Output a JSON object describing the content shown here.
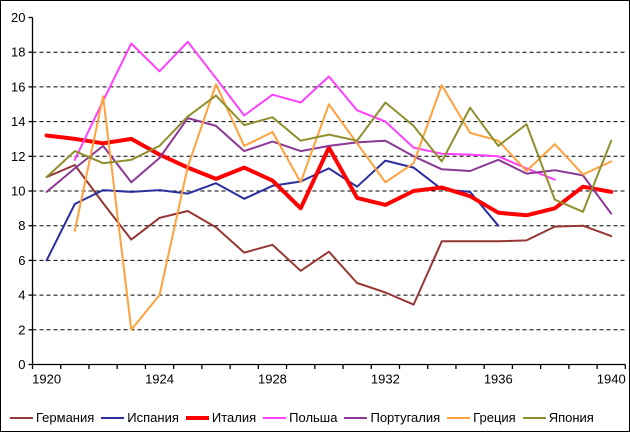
{
  "chart_data": {
    "type": "line",
    "title": "",
    "xlabel": "",
    "ylabel": "",
    "x": [
      1920,
      1921,
      1922,
      1923,
      1924,
      1925,
      1926,
      1927,
      1928,
      1929,
      1930,
      1931,
      1932,
      1933,
      1934,
      1935,
      1936,
      1937,
      1938,
      1939,
      1940
    ],
    "x_axis_tick_labels": [
      "1920",
      "1924",
      "1928",
      "1932",
      "1936",
      "1940"
    ],
    "x_label_years": [
      1920,
      1924,
      1928,
      1932,
      1936,
      1940
    ],
    "ylim": [
      0,
      20
    ],
    "y_ticks": [
      0,
      2,
      4,
      6,
      8,
      10,
      12,
      14,
      16,
      18,
      20
    ],
    "grid": "horizontal-dashed",
    "legend_position": "bottom",
    "series": [
      {
        "key": "germany",
        "name": "Германия",
        "color": "#953735",
        "width": 2,
        "values": [
          10.8,
          11.5,
          9.3,
          7.2,
          8.45,
          8.85,
          7.9,
          6.45,
          6.9,
          5.4,
          6.5,
          4.7,
          4.15,
          3.45,
          7.1,
          7.1,
          7.1,
          7.15,
          7.95,
          8.0,
          7.4
        ]
      },
      {
        "key": "spain",
        "name": "Испания",
        "color": "#2B2E9E",
        "width": 2,
        "values": [
          6.0,
          9.25,
          10.05,
          9.95,
          10.05,
          9.85,
          10.45,
          9.55,
          10.3,
          10.55,
          11.3,
          10.25,
          11.75,
          11.35,
          10.1,
          9.95,
          8.0,
          null,
          null,
          null,
          null
        ]
      },
      {
        "key": "italy",
        "name": "Италия",
        "color": "#FF0000",
        "width": 4,
        "values": [
          13.2,
          13.0,
          12.75,
          13.0,
          12.1,
          11.35,
          10.7,
          11.35,
          10.6,
          9.0,
          12.5,
          9.6,
          9.2,
          10.0,
          10.2,
          9.7,
          8.75,
          8.6,
          9.0,
          10.25,
          9.95
        ]
      },
      {
        "key": "poland",
        "name": "Польша",
        "color": "#FF40FF",
        "width": 2,
        "values": [
          null,
          11.8,
          15.2,
          18.5,
          16.9,
          18.6,
          16.5,
          14.35,
          15.55,
          15.1,
          16.6,
          14.65,
          14.0,
          12.5,
          12.15,
          12.1,
          12.0,
          11.3,
          10.65,
          null,
          null
        ]
      },
      {
        "key": "portugal",
        "name": "Португалия",
        "color": "#8C3996",
        "width": 2,
        "values": [
          9.95,
          11.3,
          12.6,
          10.5,
          11.9,
          14.2,
          13.75,
          12.3,
          12.85,
          12.3,
          12.6,
          12.8,
          12.9,
          12.0,
          11.25,
          11.15,
          11.8,
          11.0,
          11.2,
          10.9,
          8.7
        ]
      },
      {
        "key": "greece",
        "name": "Греция",
        "color": "#FFA13C",
        "width": 2,
        "values": [
          null,
          7.7,
          15.45,
          2.0,
          4.0,
          11.4,
          16.15,
          12.6,
          13.4,
          10.5,
          15.0,
          12.75,
          10.5,
          11.6,
          16.1,
          13.35,
          12.9,
          11.15,
          12.7,
          10.95,
          11.7
        ]
      },
      {
        "key": "japan",
        "name": "Япония",
        "color": "#8F8F2E",
        "width": 2,
        "values": [
          10.8,
          12.3,
          11.6,
          11.8,
          12.6,
          14.3,
          15.5,
          13.8,
          14.25,
          12.9,
          13.25,
          12.9,
          15.1,
          13.75,
          11.7,
          14.8,
          12.6,
          13.85,
          9.5,
          8.8,
          12.9
        ]
      }
    ]
  },
  "colors": {
    "background": "#FFFFFF",
    "axis": "#000000",
    "gridline": "#000000",
    "border": "#000000",
    "tick_label": "#000000"
  }
}
